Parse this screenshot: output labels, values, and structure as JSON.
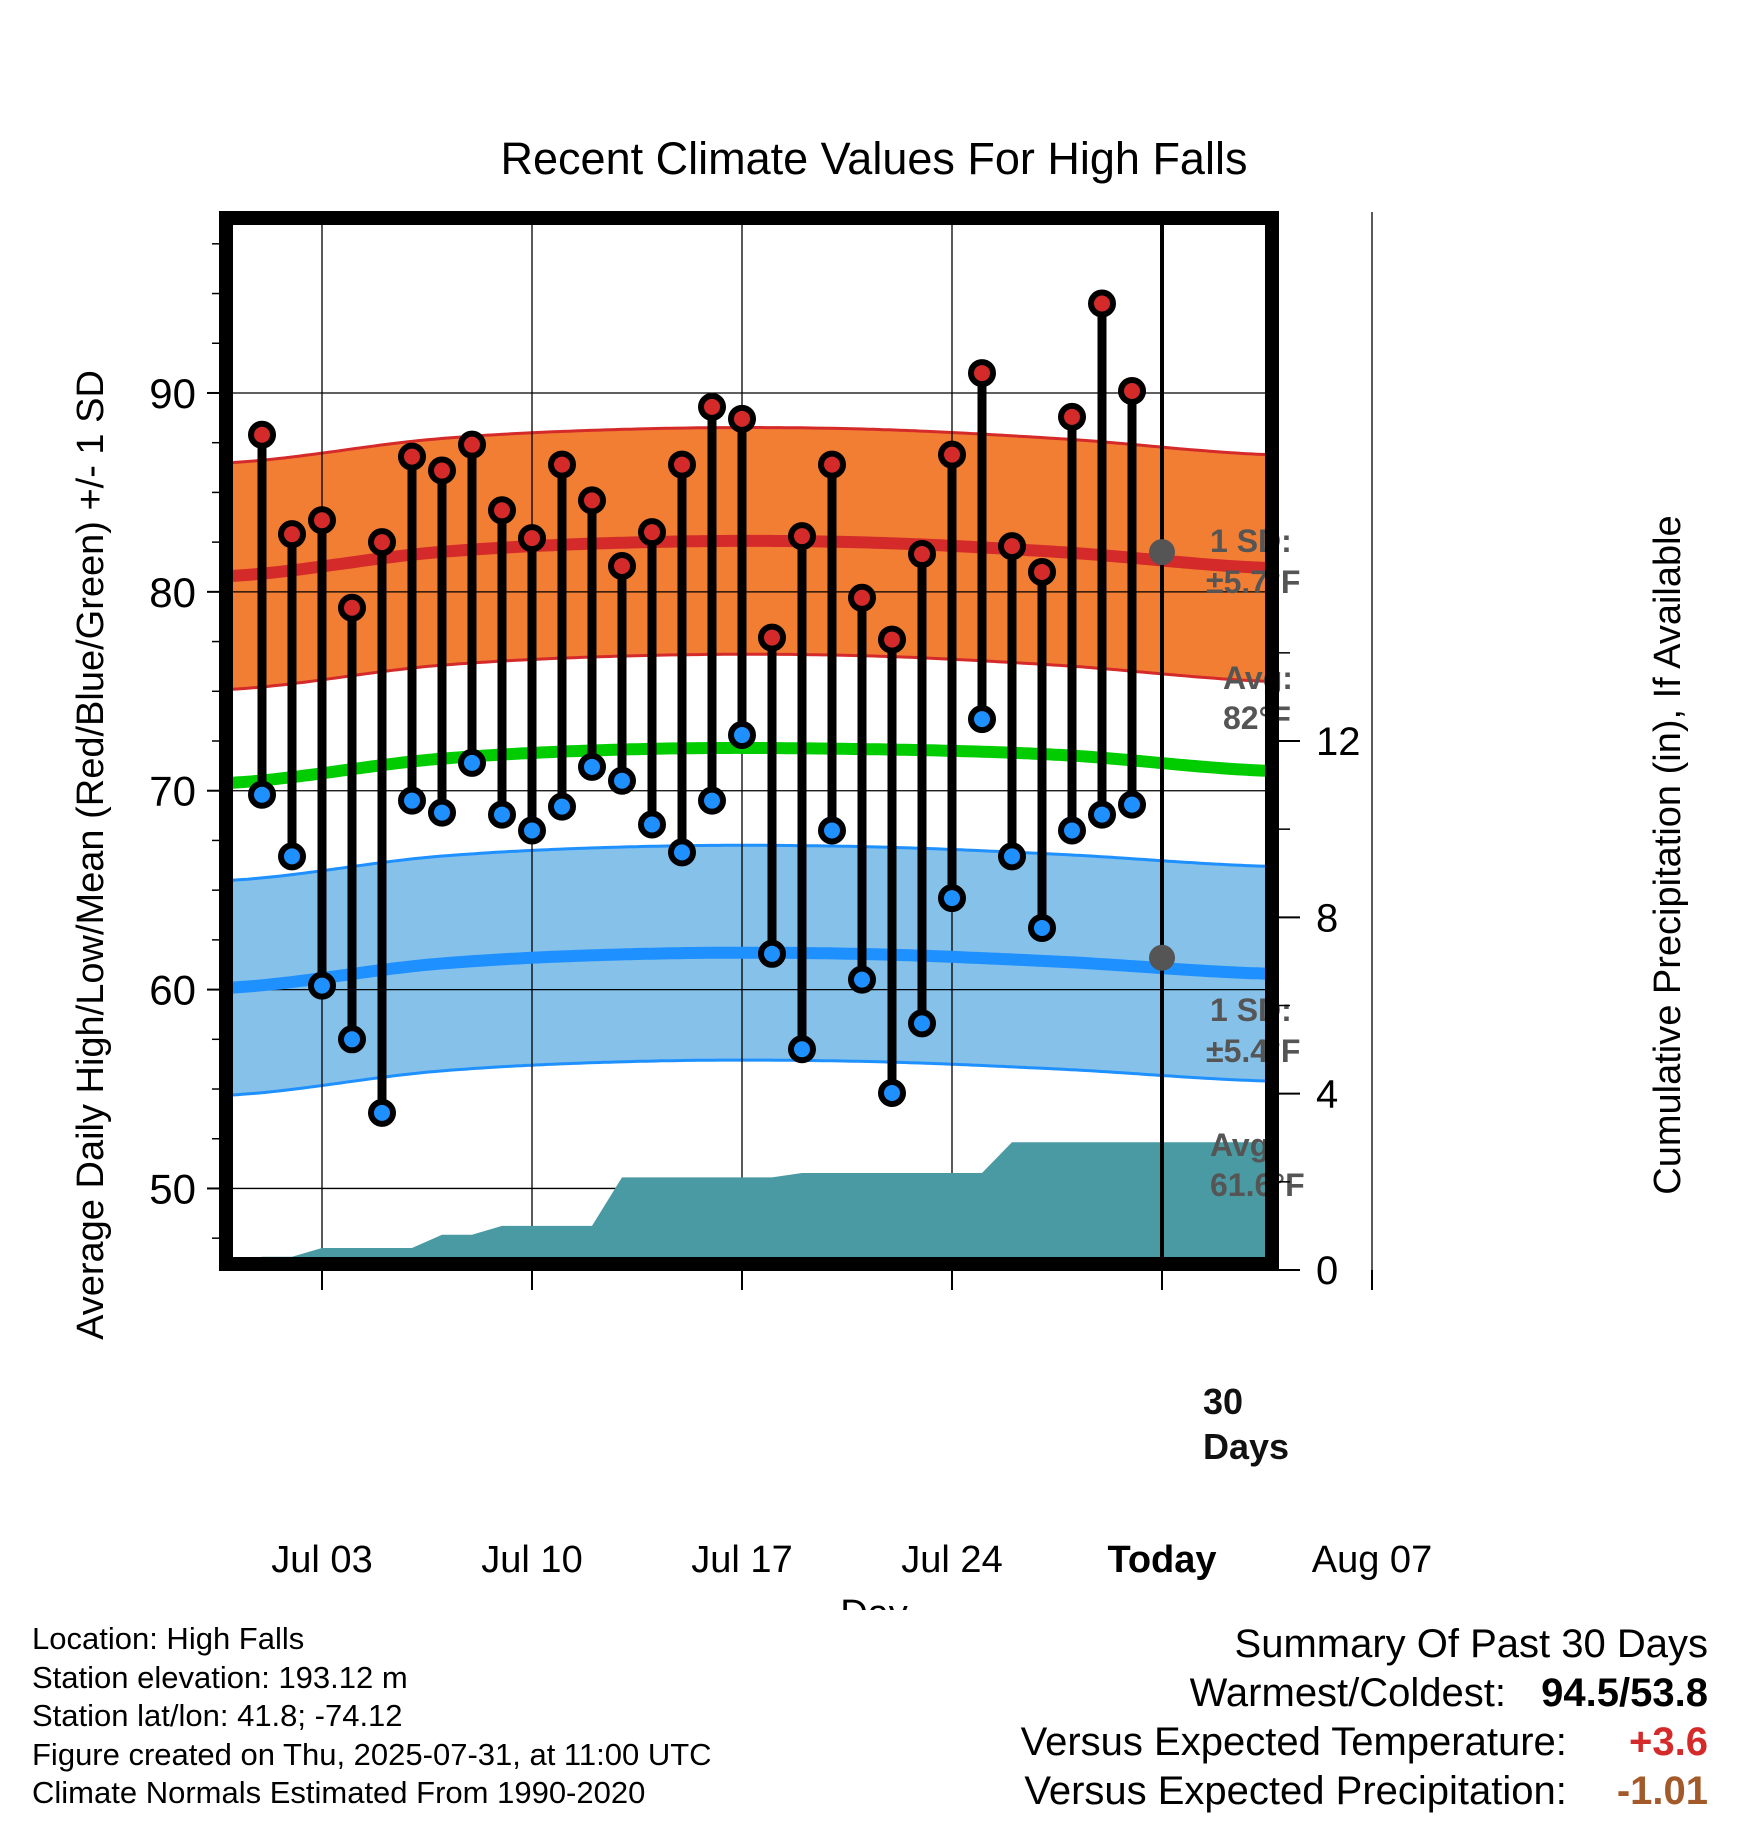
{
  "chart_data": {
    "type": "line",
    "title": "Recent Climate Values For High Falls",
    "xlabel": "Day",
    "ylabel": "Average Daily High/Low/Mean (Red/Blue/Green) +/- 1 SD",
    "y2label": "Cumulative Precipitation (in), If Available",
    "x_tick_labels": [
      "Jul 03",
      "Jul 10",
      "Jul 17",
      "Jul 24",
      "Today",
      "Aug 07"
    ],
    "y_ticks": [
      50,
      60,
      70,
      80,
      90
    ],
    "y2_ticks": [
      0,
      4,
      8,
      12
    ],
    "ylim": [
      45.9,
      99.1
    ],
    "y2lim": [
      0,
      24
    ],
    "grid": true,
    "days": [
      "Jul 01",
      "Jul 02",
      "Jul 03",
      "Jul 04",
      "Jul 05",
      "Jul 06",
      "Jul 07",
      "Jul 08",
      "Jul 09",
      "Jul 10",
      "Jul 11",
      "Jul 12",
      "Jul 13",
      "Jul 14",
      "Jul 15",
      "Jul 16",
      "Jul 17",
      "Jul 18",
      "Jul 19",
      "Jul 20",
      "Jul 21",
      "Jul 22",
      "Jul 23",
      "Jul 24",
      "Jul 25",
      "Jul 26",
      "Jul 27",
      "Jul 28",
      "Jul 29",
      "Jul 30"
    ],
    "series": [
      {
        "name": "High",
        "color": "#d42a2a",
        "values": [
          87.9,
          82.9,
          83.6,
          79.2,
          82.5,
          86.8,
          86.1,
          87.4,
          84.1,
          82.7,
          86.4,
          84.6,
          81.3,
          83.0,
          86.4,
          89.3,
          88.7,
          77.7,
          82.8,
          86.4,
          79.7,
          77.6,
          81.9,
          86.9,
          91.0,
          82.3,
          81.0,
          88.8,
          94.5,
          90.1
        ]
      },
      {
        "name": "Low",
        "color": "#1e90ff",
        "values": [
          69.8,
          66.7,
          60.2,
          57.5,
          53.8,
          69.5,
          68.9,
          71.4,
          68.8,
          68.0,
          69.2,
          71.2,
          70.5,
          68.3,
          66.9,
          69.5,
          72.8,
          61.8,
          57.0,
          68.0,
          60.5,
          54.8,
          58.3,
          64.6,
          73.6,
          66.7,
          63.1,
          68.0,
          68.8,
          69.3
        ]
      }
    ],
    "normals": {
      "x_start": "Jun 30",
      "x_end": "Aug 11",
      "high_avg_curve": [
        80.8,
        82.0,
        82.5,
        82.5,
        82.0,
        81.2
      ],
      "low_avg_curve": [
        60.1,
        61.3,
        61.8,
        61.8,
        61.4,
        60.8
      ],
      "mean_curve": [
        70.4,
        71.6,
        72.1,
        72.1,
        71.8,
        71.0
      ],
      "high_sd": 5.7,
      "low_sd": 5.4
    },
    "precip": {
      "days": [
        "Jun 30",
        "Jul 01",
        "Jul 02",
        "Jul 03",
        "Jul 04",
        "Jul 05",
        "Jul 06",
        "Jul 07",
        "Jul 08",
        "Jul 09",
        "Jul 10",
        "Jul 11",
        "Jul 12",
        "Jul 13",
        "Jul 14",
        "Jul 15",
        "Jul 16",
        "Jul 17",
        "Jul 18",
        "Jul 19",
        "Jul 20",
        "Jul 21",
        "Jul 22",
        "Jul 23",
        "Jul 24",
        "Jul 25",
        "Jul 26",
        "Jul 27",
        "Jul 28",
        "Jul 29",
        "Jul 30",
        "Aug 11"
      ],
      "values": [
        0.0,
        0.3,
        0.3,
        0.5,
        0.5,
        0.5,
        0.5,
        0.8,
        0.8,
        1.0,
        1.0,
        1.0,
        1.0,
        2.1,
        2.1,
        2.1,
        2.1,
        2.1,
        2.1,
        2.2,
        2.2,
        2.2,
        2.2,
        2.2,
        2.2,
        2.2,
        2.9,
        2.9,
        2.9,
        2.9,
        2.9,
        2.9
      ]
    },
    "annotations": {
      "high_sd_label": "1 SD:",
      "high_sd_value": "±5.7°F",
      "high_avg_label": "Avg:",
      "high_avg_value": "82°F",
      "low_sd_label": "1 SD:",
      "low_sd_value": "±5.4°F",
      "low_avg_label": "Avg:",
      "low_avg_value": "61.6°F",
      "today_high": 82.0,
      "today_low": 61.6,
      "days_count": "30",
      "days_word": "Days"
    },
    "colors": {
      "high_band": "#f27e34",
      "high_line": "#d42a2a",
      "low_band": "#85c1e8",
      "low_line": "#1e90ff",
      "mean_line": "#00cc00",
      "precip": "#4a9aa3",
      "today_dot": "#555555"
    }
  },
  "footer": {
    "location": "Location: High Falls",
    "elevation": "Station elevation: 193.12 m",
    "latlon": "Station lat/lon: 41.8; -74.12",
    "created": "Figure created on Thu, 2025-07-31, at 11:00 UTC",
    "normals": "Climate Normals Estimated From 1990-2020"
  },
  "summary": {
    "title": "Summary Of Past 30 Days",
    "warm_label": "Warmest/Coldest:",
    "warmest": "94.5",
    "sep": "/",
    "coldest": "53.8",
    "temp_label": "Versus Expected Temperature:",
    "temp_value": "+3.6",
    "prec_label": "Versus Expected Precipitation:",
    "prec_value": "-1.01"
  }
}
